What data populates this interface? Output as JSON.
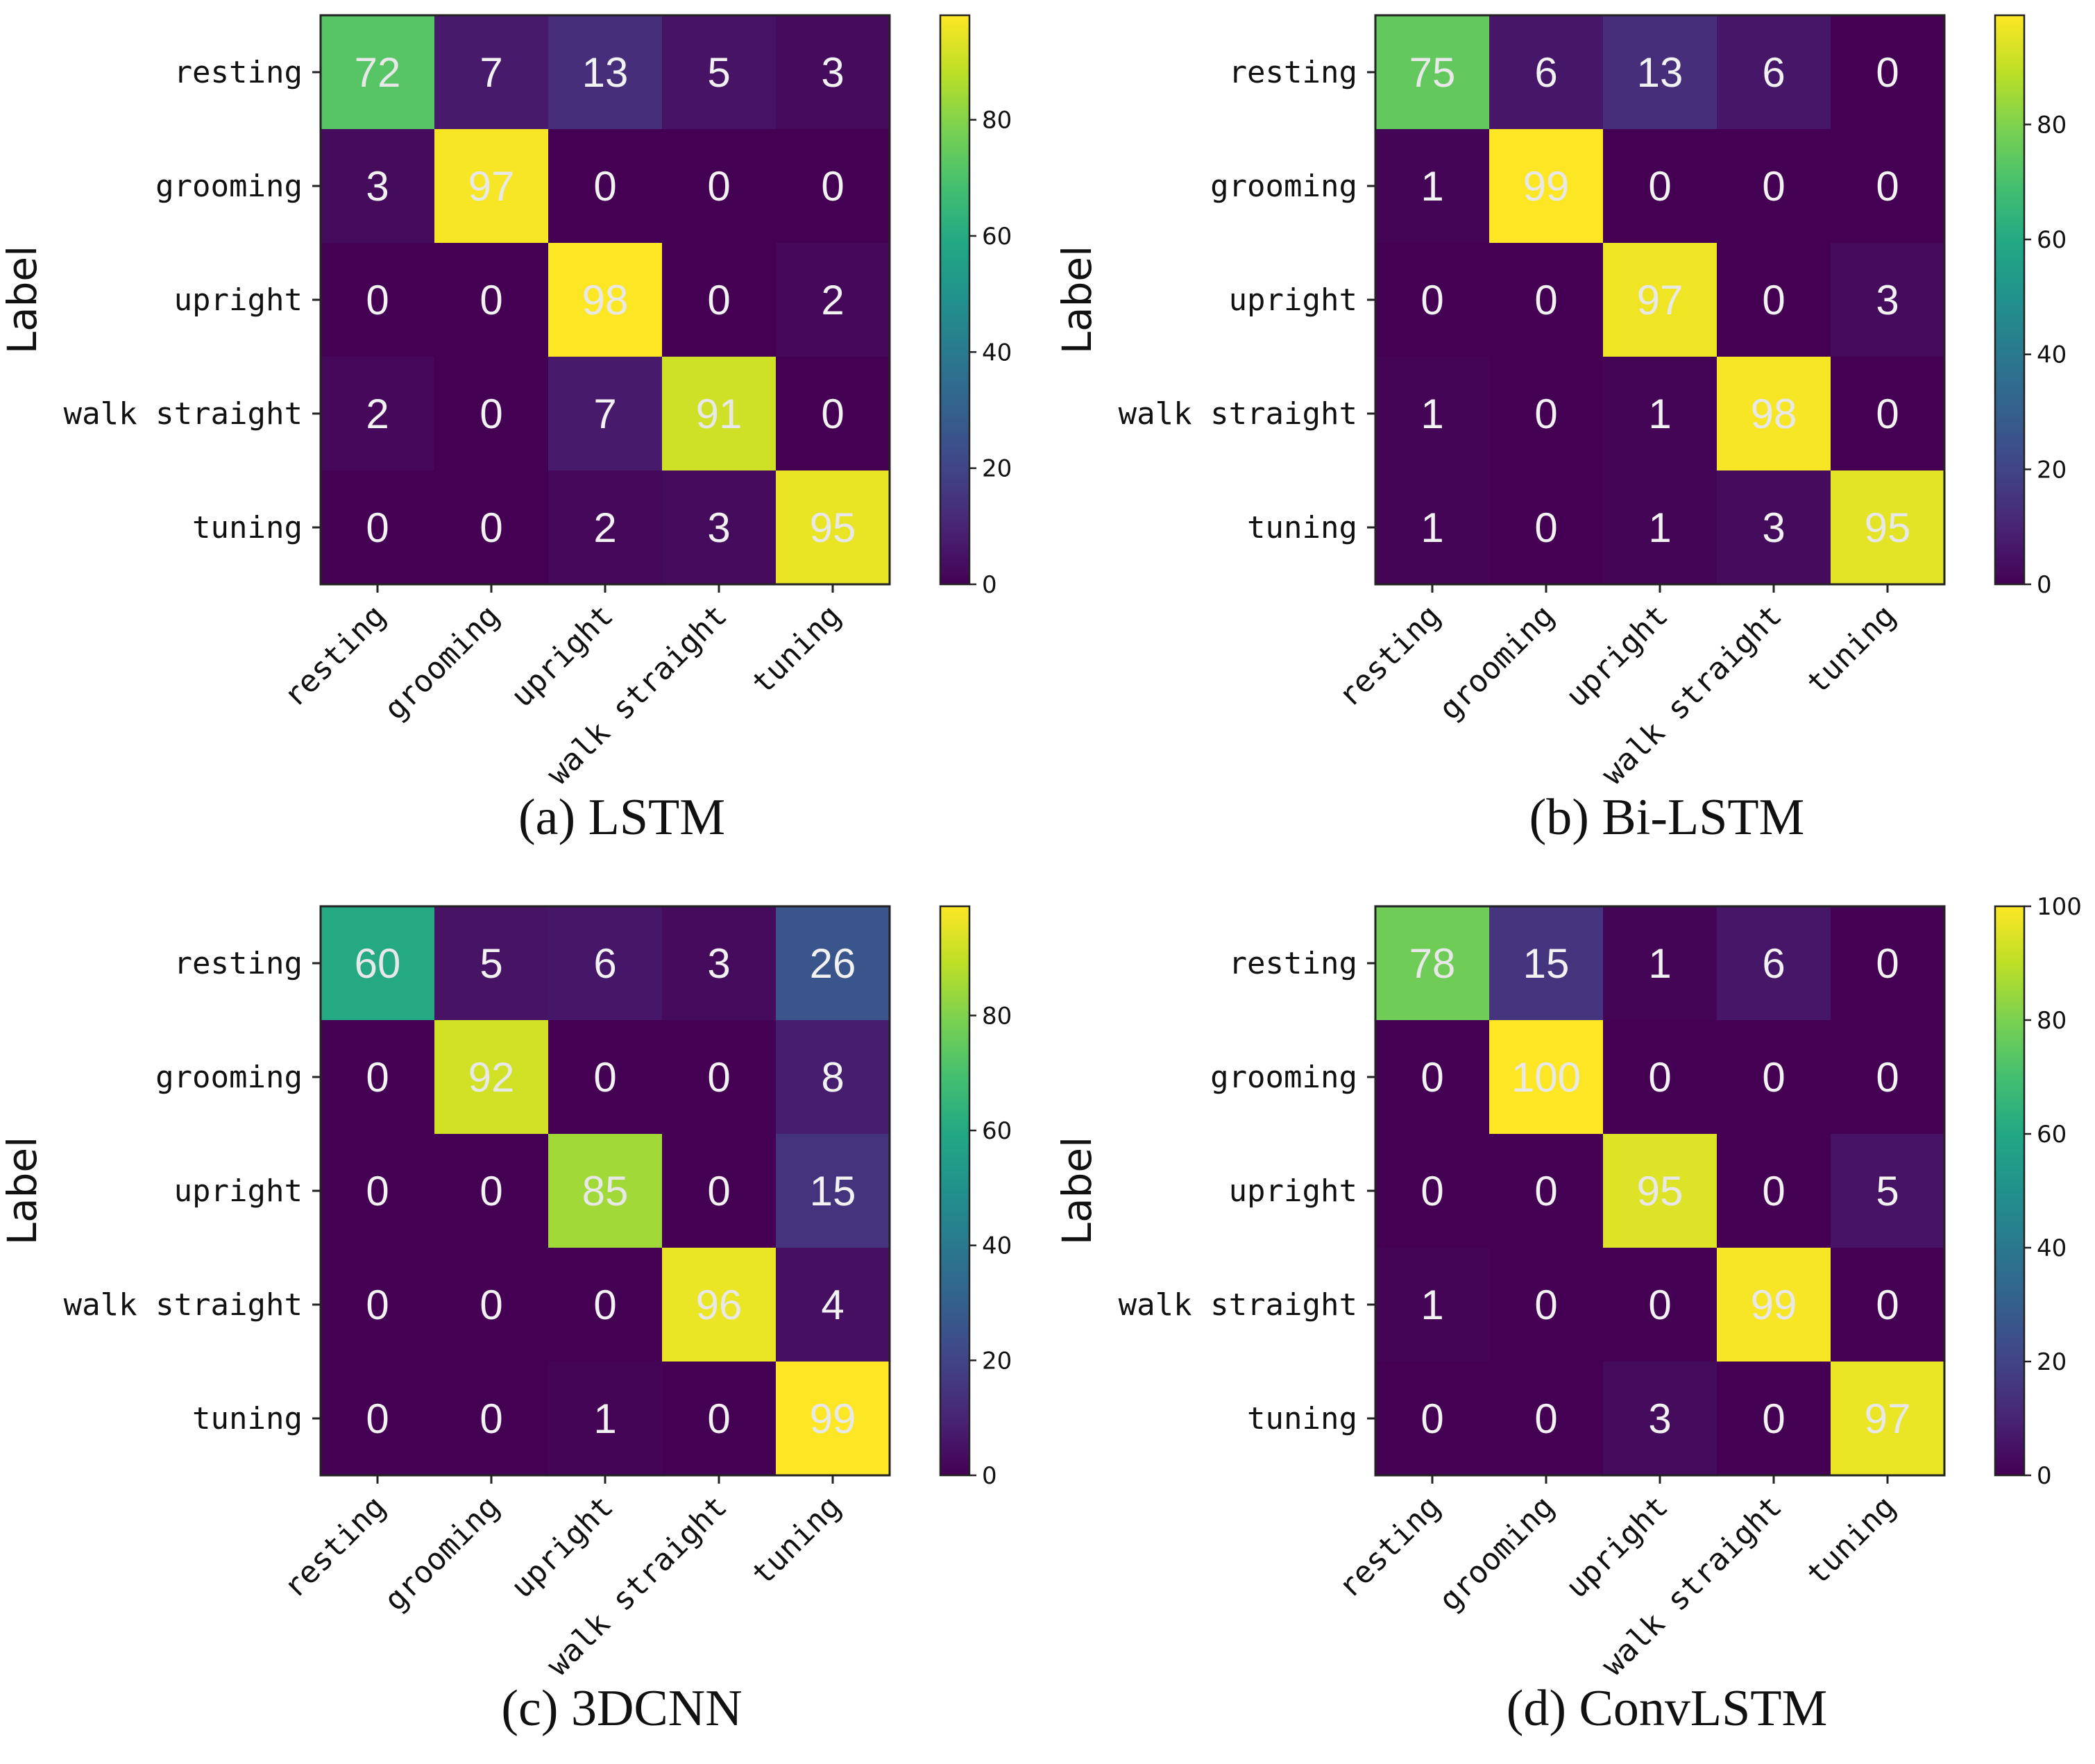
{
  "chart_data": [
    {
      "type": "heatmap",
      "caption": "(a) LSTM",
      "ylabel": "Label",
      "row_labels": [
        "resting",
        "grooming",
        "upright",
        "walk straight",
        "tuning"
      ],
      "col_labels": [
        "resting",
        "grooming",
        "upright",
        "walk straight",
        "tuning"
      ],
      "matrix": [
        [
          72,
          7,
          13,
          5,
          3
        ],
        [
          3,
          97,
          0,
          0,
          0
        ],
        [
          0,
          0,
          98,
          0,
          2
        ],
        [
          2,
          0,
          7,
          91,
          0
        ],
        [
          0,
          0,
          2,
          3,
          95
        ]
      ],
      "colorbar": {
        "min": 0,
        "max": 98,
        "ticks": [
          "0",
          "20",
          "40",
          "60",
          "80"
        ]
      }
    },
    {
      "type": "heatmap",
      "caption": "(b) Bi-LSTM",
      "ylabel": "Label",
      "row_labels": [
        "resting",
        "grooming",
        "upright",
        "walk straight",
        "tuning"
      ],
      "col_labels": [
        "resting",
        "grooming",
        "upright",
        "walk straight",
        "tuning"
      ],
      "matrix": [
        [
          75,
          6,
          13,
          6,
          0
        ],
        [
          1,
          99,
          0,
          0,
          0
        ],
        [
          0,
          0,
          97,
          0,
          3
        ],
        [
          1,
          0,
          1,
          98,
          0
        ],
        [
          1,
          0,
          1,
          3,
          95
        ]
      ],
      "colorbar": {
        "min": 0,
        "max": 99,
        "ticks": [
          "0",
          "20",
          "40",
          "60",
          "80"
        ]
      }
    },
    {
      "type": "heatmap",
      "caption": "(c) 3DCNN",
      "ylabel": "Label",
      "row_labels": [
        "resting",
        "grooming",
        "upright",
        "walk straight",
        "tuning"
      ],
      "col_labels": [
        "resting",
        "grooming",
        "upright",
        "walk straight",
        "tuning"
      ],
      "matrix": [
        [
          60,
          5,
          6,
          3,
          26
        ],
        [
          0,
          92,
          0,
          0,
          8
        ],
        [
          0,
          0,
          85,
          0,
          15
        ],
        [
          0,
          0,
          0,
          96,
          4
        ],
        [
          0,
          0,
          1,
          0,
          99
        ]
      ],
      "colorbar": {
        "min": 0,
        "max": 99,
        "ticks": [
          "0",
          "20",
          "40",
          "60",
          "80"
        ]
      }
    },
    {
      "type": "heatmap",
      "caption": "(d) ConvLSTM",
      "ylabel": "Label",
      "row_labels": [
        "resting",
        "grooming",
        "upright",
        "walk straight",
        "tuning"
      ],
      "col_labels": [
        "resting",
        "grooming",
        "upright",
        "walk straight",
        "tuning"
      ],
      "matrix": [
        [
          78,
          15,
          1,
          6,
          0
        ],
        [
          0,
          100,
          0,
          0,
          0
        ],
        [
          0,
          0,
          95,
          0,
          5
        ],
        [
          1,
          0,
          0,
          99,
          0
        ],
        [
          0,
          0,
          3,
          0,
          97
        ]
      ],
      "colorbar": {
        "min": 0,
        "max": 100,
        "ticks": [
          "0",
          "20",
          "40",
          "60",
          "80",
          "100"
        ]
      }
    }
  ]
}
